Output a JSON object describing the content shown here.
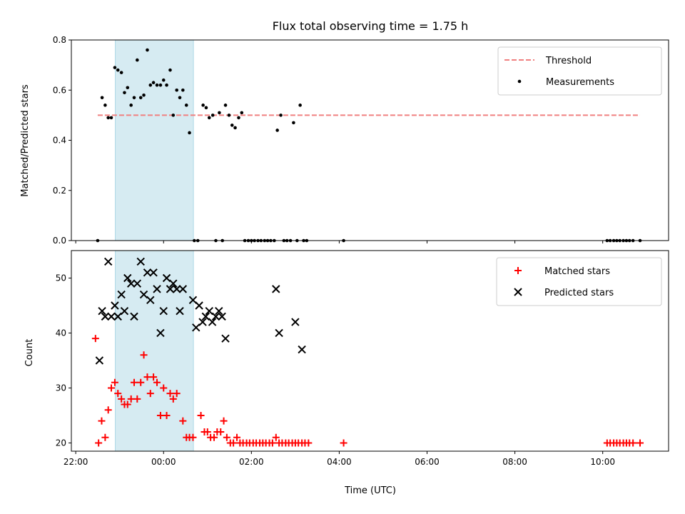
{
  "chart_data": [
    {
      "type": "scatter",
      "title": "Flux total observing time = 1.75 h",
      "xlabel": "",
      "ylabel": "Matched/Predicted stars",
      "x_unit": "hours relative to 00:00 UTC",
      "xlim": [
        -2.1,
        11.5
      ],
      "ylim": [
        0.0,
        0.8
      ],
      "yticks": [
        0.0,
        0.2,
        0.4,
        0.6,
        0.8
      ],
      "ytick_labels": [
        "0.0",
        "0.2",
        "0.4",
        "0.6",
        "0.8"
      ],
      "shaded_span": {
        "x": [
          -1.1,
          0.68
        ],
        "color": "#add8e6"
      },
      "legend_position": "upper right",
      "threshold": {
        "name": "Threshold",
        "y": 0.5,
        "x": [
          -1.5,
          10.85
        ],
        "color": "#f08080",
        "style": "dashed"
      },
      "series": [
        {
          "name": "Measurements",
          "color": "#000000",
          "marker": "dot",
          "points": [
            [
              -1.5,
              0.0
            ],
            [
              -1.4,
              0.57
            ],
            [
              -1.33,
              0.54
            ],
            [
              -1.26,
              0.49
            ],
            [
              -1.19,
              0.49
            ],
            [
              -1.11,
              0.69
            ],
            [
              -1.04,
              0.68
            ],
            [
              -0.96,
              0.67
            ],
            [
              -0.89,
              0.59
            ],
            [
              -0.82,
              0.61
            ],
            [
              -0.74,
              0.54
            ],
            [
              -0.67,
              0.57
            ],
            [
              -0.6,
              0.72
            ],
            [
              -0.52,
              0.57
            ],
            [
              -0.45,
              0.58
            ],
            [
              -0.37,
              0.76
            ],
            [
              -0.3,
              0.62
            ],
            [
              -0.23,
              0.63
            ],
            [
              -0.15,
              0.62
            ],
            [
              -0.07,
              0.62
            ],
            [
              0.0,
              0.64
            ],
            [
              0.07,
              0.62
            ],
            [
              0.15,
              0.68
            ],
            [
              0.22,
              0.5
            ],
            [
              0.3,
              0.6
            ],
            [
              0.37,
              0.57
            ],
            [
              0.44,
              0.6
            ],
            [
              0.52,
              0.54
            ],
            [
              0.59,
              0.43
            ],
            [
              0.7,
              0.0
            ],
            [
              0.78,
              0.0
            ],
            [
              0.9,
              0.54
            ],
            [
              0.97,
              0.53
            ],
            [
              1.04,
              0.49
            ],
            [
              1.12,
              0.5
            ],
            [
              1.19,
              0.0
            ],
            [
              1.27,
              0.51
            ],
            [
              1.34,
              0.0
            ],
            [
              1.41,
              0.54
            ],
            [
              1.49,
              0.5
            ],
            [
              1.56,
              0.46
            ],
            [
              1.63,
              0.45
            ],
            [
              1.71,
              0.49
            ],
            [
              1.78,
              0.51
            ],
            [
              1.85,
              0.0
            ],
            [
              1.93,
              0.0
            ],
            [
              2.0,
              0.0
            ],
            [
              2.07,
              0.0
            ],
            [
              2.15,
              0.0
            ],
            [
              2.22,
              0.0
            ],
            [
              2.3,
              0.0
            ],
            [
              2.37,
              0.0
            ],
            [
              2.44,
              0.0
            ],
            [
              2.52,
              0.0
            ],
            [
              2.59,
              0.44
            ],
            [
              2.67,
              0.5
            ],
            [
              2.74,
              0.0
            ],
            [
              2.81,
              0.0
            ],
            [
              2.89,
              0.0
            ],
            [
              2.96,
              0.47
            ],
            [
              3.04,
              0.0
            ],
            [
              3.11,
              0.54
            ],
            [
              3.19,
              0.0
            ],
            [
              3.26,
              0.0
            ],
            [
              4.1,
              0.0
            ],
            [
              10.1,
              0.0
            ],
            [
              10.17,
              0.0
            ],
            [
              10.25,
              0.0
            ],
            [
              10.32,
              0.0
            ],
            [
              10.39,
              0.0
            ],
            [
              10.47,
              0.0
            ],
            [
              10.54,
              0.0
            ],
            [
              10.61,
              0.0
            ],
            [
              10.69,
              0.0
            ],
            [
              10.85,
              0.0
            ]
          ]
        }
      ]
    },
    {
      "type": "scatter",
      "title": "",
      "xlabel": "Time (UTC)",
      "ylabel": "Count",
      "x_unit": "hours relative to 00:00 UTC",
      "xlim": [
        -2.1,
        11.5
      ],
      "ylim": [
        18.5,
        55
      ],
      "xticks": [
        -2,
        0,
        2,
        4,
        6,
        8,
        10
      ],
      "xtick_labels": [
        "22:00",
        "00:00",
        "02:00",
        "04:00",
        "06:00",
        "08:00",
        "10:00"
      ],
      "yticks": [
        20,
        30,
        40,
        50
      ],
      "ytick_labels": [
        "20",
        "30",
        "40",
        "50"
      ],
      "shaded_span": {
        "x": [
          -1.1,
          0.68
        ],
        "color": "#add8e6"
      },
      "legend_position": "upper right",
      "series": [
        {
          "name": "Matched stars",
          "color": "#ff0000",
          "marker": "plus",
          "points": [
            [
              -1.55,
              39
            ],
            [
              -1.48,
              20
            ],
            [
              -1.41,
              24
            ],
            [
              -1.33,
              21
            ],
            [
              -1.26,
              26
            ],
            [
              -1.19,
              30
            ],
            [
              -1.11,
              31
            ],
            [
              -1.04,
              29
            ],
            [
              -0.96,
              28
            ],
            [
              -0.89,
              27
            ],
            [
              -0.82,
              27
            ],
            [
              -0.74,
              28
            ],
            [
              -0.67,
              31
            ],
            [
              -0.6,
              28
            ],
            [
              -0.52,
              31
            ],
            [
              -0.45,
              36
            ],
            [
              -0.37,
              32
            ],
            [
              -0.3,
              29
            ],
            [
              -0.23,
              32
            ],
            [
              -0.15,
              31
            ],
            [
              -0.07,
              25
            ],
            [
              0.0,
              30
            ],
            [
              0.07,
              25
            ],
            [
              0.15,
              29
            ],
            [
              0.22,
              28
            ],
            [
              0.3,
              29
            ],
            [
              0.44,
              24
            ],
            [
              0.52,
              21
            ],
            [
              0.59,
              21
            ],
            [
              0.67,
              21
            ],
            [
              0.85,
              25
            ],
            [
              0.93,
              22
            ],
            [
              1.0,
              22
            ],
            [
              1.07,
              21
            ],
            [
              1.15,
              21
            ],
            [
              1.22,
              22
            ],
            [
              1.3,
              22
            ],
            [
              1.37,
              24
            ],
            [
              1.44,
              21
            ],
            [
              1.52,
              20
            ],
            [
              1.59,
              20
            ],
            [
              1.67,
              21
            ],
            [
              1.74,
              20
            ],
            [
              1.81,
              20
            ],
            [
              1.89,
              20
            ],
            [
              1.96,
              20
            ],
            [
              2.04,
              20
            ],
            [
              2.11,
              20
            ],
            [
              2.19,
              20
            ],
            [
              2.26,
              20
            ],
            [
              2.33,
              20
            ],
            [
              2.41,
              20
            ],
            [
              2.48,
              20
            ],
            [
              2.56,
              21
            ],
            [
              2.63,
              20
            ],
            [
              2.7,
              20
            ],
            [
              2.78,
              20
            ],
            [
              2.85,
              20
            ],
            [
              2.93,
              20
            ],
            [
              3.0,
              20
            ],
            [
              3.07,
              20
            ],
            [
              3.15,
              20
            ],
            [
              3.22,
              20
            ],
            [
              3.3,
              20
            ],
            [
              4.1,
              20
            ],
            [
              10.1,
              20
            ],
            [
              10.17,
              20
            ],
            [
              10.25,
              20
            ],
            [
              10.32,
              20
            ],
            [
              10.39,
              20
            ],
            [
              10.47,
              20
            ],
            [
              10.54,
              20
            ],
            [
              10.61,
              20
            ],
            [
              10.69,
              20
            ],
            [
              10.85,
              20
            ]
          ]
        },
        {
          "name": "Predicted stars",
          "color": "#000000",
          "marker": "x",
          "points": [
            [
              -1.46,
              35
            ],
            [
              -1.4,
              44
            ],
            [
              -1.33,
              43
            ],
            [
              -1.26,
              53
            ],
            [
              -1.19,
              43
            ],
            [
              -1.11,
              45
            ],
            [
              -1.04,
              43
            ],
            [
              -0.96,
              47
            ],
            [
              -0.89,
              44
            ],
            [
              -0.82,
              50
            ],
            [
              -0.74,
              49
            ],
            [
              -0.67,
              43
            ],
            [
              -0.6,
              49
            ],
            [
              -0.52,
              53
            ],
            [
              -0.45,
              47
            ],
            [
              -0.37,
              51
            ],
            [
              -0.3,
              46
            ],
            [
              -0.23,
              51
            ],
            [
              -0.15,
              48
            ],
            [
              -0.07,
              40
            ],
            [
              0.0,
              44
            ],
            [
              0.07,
              50
            ],
            [
              0.15,
              48
            ],
            [
              0.22,
              49
            ],
            [
              0.3,
              48
            ],
            [
              0.37,
              44
            ],
            [
              0.44,
              48
            ],
            [
              0.67,
              46
            ],
            [
              0.74,
              41
            ],
            [
              0.81,
              45
            ],
            [
              0.89,
              42
            ],
            [
              0.96,
              43
            ],
            [
              1.04,
              44
            ],
            [
              1.11,
              42
            ],
            [
              1.19,
              43
            ],
            [
              1.26,
              44
            ],
            [
              1.33,
              43
            ],
            [
              1.41,
              39
            ],
            [
              2.56,
              48
            ],
            [
              2.63,
              40
            ],
            [
              3.0,
              42
            ],
            [
              3.15,
              37
            ]
          ]
        }
      ]
    }
  ]
}
